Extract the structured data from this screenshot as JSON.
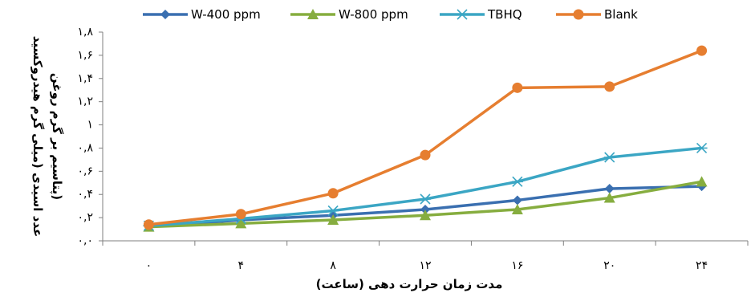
{
  "chart_data": {
    "type": "line",
    "x": [
      0,
      4,
      8,
      12,
      16,
      20,
      24
    ],
    "x_tick_labels": [
      "٠",
      "۴",
      "٨",
      "١٢",
      "١۶",
      "٢٠",
      "٢۴"
    ],
    "xlabel": "مدت زمان حرارت دهی (ساعت)",
    "ylabel_line1": "عدد اسیدی (میلی گرم هیدروکسید",
    "ylabel_line2": "پتاسیم بر گرم روغن)",
    "ylim": [
      0,
      1.8
    ],
    "y_ticks": [
      0,
      0.2,
      0.4,
      0.6,
      0.8,
      1.0,
      1.2,
      1.4,
      1.6,
      1.8
    ],
    "y_tick_labels": [
      "٠,٠",
      "٠,٢",
      "٠,۴",
      "٠,۶",
      "٠,٨",
      "١",
      "١,٢",
      "١,۴",
      "١,۶",
      "١,٨"
    ],
    "grid": false,
    "legend_position": "top",
    "series": [
      {
        "name": "W-400 ppm",
        "color": "#3a6fb0",
        "marker": "diamond",
        "values": [
          0.12,
          0.18,
          0.22,
          0.27,
          0.35,
          0.45,
          0.47
        ]
      },
      {
        "name": "W-800 ppm",
        "color": "#86ad3f",
        "marker": "triangle",
        "values": [
          0.12,
          0.15,
          0.18,
          0.22,
          0.27,
          0.37,
          0.51
        ]
      },
      {
        "name": "TBHQ",
        "color": "#3ba6c4",
        "marker": "asterisk",
        "values": [
          0.13,
          0.19,
          0.26,
          0.36,
          0.51,
          0.72,
          0.8
        ]
      },
      {
        "name": "Blank",
        "color": "#e67e30",
        "marker": "circle",
        "values": [
          0.14,
          0.23,
          0.41,
          0.74,
          1.32,
          1.33,
          1.64
        ]
      }
    ]
  }
}
